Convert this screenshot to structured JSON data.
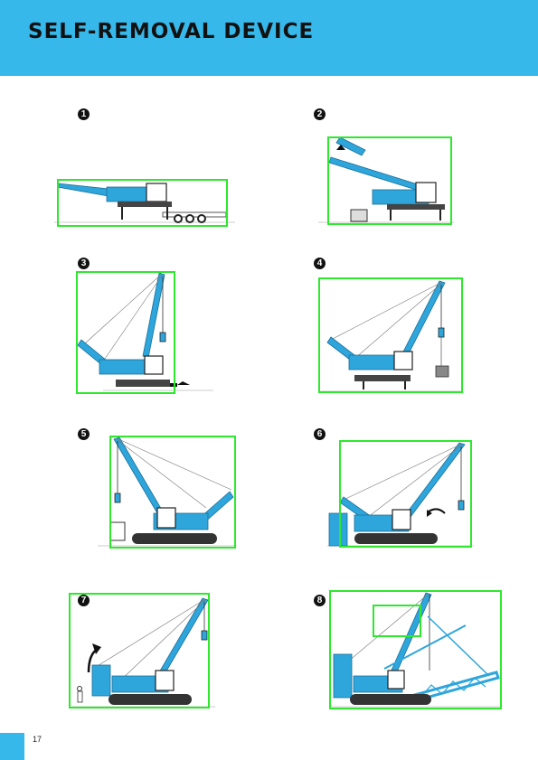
{
  "header": {
    "title": "SELF-REMOVAL DEVICE",
    "background": "#36b8ea"
  },
  "steps": [
    {
      "number": "1",
      "icon": "crane-transport-trailer-illustration"
    },
    {
      "number": "2",
      "icon": "crane-boom-raising-illustration"
    },
    {
      "number": "3",
      "icon": "crane-crawler-install-illustration"
    },
    {
      "number": "4",
      "icon": "crane-counterweight-lift-illustration"
    },
    {
      "number": "5",
      "icon": "crane-crawler-assembled-illustration"
    },
    {
      "number": "6",
      "icon": "crane-counterweight-rotate-illustration"
    },
    {
      "number": "7",
      "icon": "crane-counterweight-stack-illustration"
    },
    {
      "number": "8",
      "icon": "crane-boom-extension-illustration"
    }
  ],
  "colors": {
    "crane": "#2ea6dc",
    "highlight": "#2ee82e",
    "track": "#1e1e1e"
  },
  "footer": {
    "page_number": "17"
  }
}
